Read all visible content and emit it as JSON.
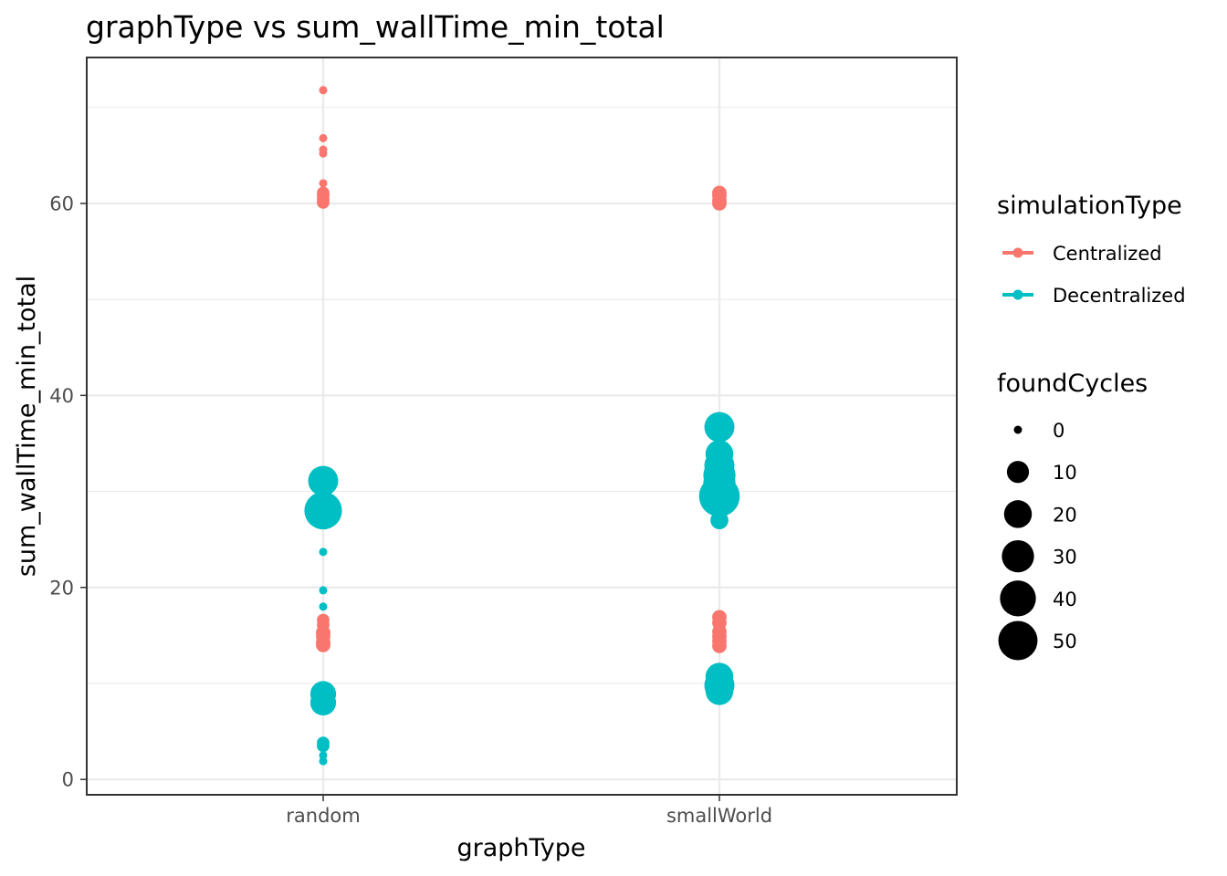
{
  "chart_data": {
    "type": "scatter",
    "title": "graphType  vs  sum_wallTime_min_total",
    "xlabel": "graphType",
    "ylabel": "sum_wallTime_min_total",
    "categories": [
      "random",
      "smallWorld"
    ],
    "ylim": [
      -1.6,
      75.2
    ],
    "yticks": [
      0,
      20,
      40,
      60
    ],
    "grid": true,
    "legend_position": "right",
    "series": [
      {
        "name": "Centralized",
        "color": "#F8766D",
        "points": [
          {
            "x": "random",
            "y": 71.8,
            "size": 0
          },
          {
            "x": "random",
            "y": 66.8,
            "size": 0
          },
          {
            "x": "random",
            "y": 65.6,
            "size": 0
          },
          {
            "x": "random",
            "y": 65.2,
            "size": 0
          },
          {
            "x": "random",
            "y": 62.1,
            "size": 0
          },
          {
            "x": "random",
            "y": 61.1,
            "size": 1
          },
          {
            "x": "random",
            "y": 60.8,
            "size": 1
          },
          {
            "x": "random",
            "y": 60.4,
            "size": 1
          },
          {
            "x": "random",
            "y": 60.1,
            "size": 1
          },
          {
            "x": "random",
            "y": 16.6,
            "size": 1
          },
          {
            "x": "random",
            "y": 16.1,
            "size": 1
          },
          {
            "x": "random",
            "y": 15.3,
            "size": 2
          },
          {
            "x": "random",
            "y": 14.9,
            "size": 2
          },
          {
            "x": "random",
            "y": 14.3,
            "size": 2
          },
          {
            "x": "random",
            "y": 14.0,
            "size": 2
          },
          {
            "x": "smallWorld",
            "y": 61.1,
            "size": 2
          },
          {
            "x": "smallWorld",
            "y": 60.8,
            "size": 2
          },
          {
            "x": "smallWorld",
            "y": 60.3,
            "size": 2
          },
          {
            "x": "smallWorld",
            "y": 60.0,
            "size": 2
          },
          {
            "x": "smallWorld",
            "y": 16.9,
            "size": 2
          },
          {
            "x": "smallWorld",
            "y": 16.3,
            "size": 2
          },
          {
            "x": "smallWorld",
            "y": 15.4,
            "size": 2
          },
          {
            "x": "smallWorld",
            "y": 14.9,
            "size": 2
          },
          {
            "x": "smallWorld",
            "y": 14.4,
            "size": 2
          },
          {
            "x": "smallWorld",
            "y": 13.9,
            "size": 2
          }
        ]
      },
      {
        "name": "Decentralized",
        "color": "#00BFC4",
        "points": [
          {
            "x": "random",
            "y": 31.1,
            "size": 25
          },
          {
            "x": "random",
            "y": 28.0,
            "size": 45
          },
          {
            "x": "random",
            "y": 23.7,
            "size": 0
          },
          {
            "x": "random",
            "y": 19.7,
            "size": 0
          },
          {
            "x": "random",
            "y": 18.0,
            "size": 0
          },
          {
            "x": "random",
            "y": 8.9,
            "size": 16
          },
          {
            "x": "random",
            "y": 8.0,
            "size": 16
          },
          {
            "x": "random",
            "y": 3.8,
            "size": 1
          },
          {
            "x": "random",
            "y": 3.5,
            "size": 1
          },
          {
            "x": "random",
            "y": 2.5,
            "size": 0
          },
          {
            "x": "random",
            "y": 1.9,
            "size": 0
          },
          {
            "x": "smallWorld",
            "y": 36.7,
            "size": 25
          },
          {
            "x": "smallWorld",
            "y": 33.9,
            "size": 20
          },
          {
            "x": "smallWorld",
            "y": 32.7,
            "size": 25
          },
          {
            "x": "smallWorld",
            "y": 31.7,
            "size": 30
          },
          {
            "x": "smallWorld",
            "y": 30.9,
            "size": 30
          },
          {
            "x": "smallWorld",
            "y": 29.5,
            "size": 55
          },
          {
            "x": "smallWorld",
            "y": 27.0,
            "size": 5
          },
          {
            "x": "smallWorld",
            "y": 10.7,
            "size": 20
          },
          {
            "x": "smallWorld",
            "y": 9.8,
            "size": 25
          },
          {
            "x": "smallWorld",
            "y": 9.2,
            "size": 20
          }
        ]
      }
    ],
    "legends": {
      "color": {
        "title": "simulationType",
        "entries": [
          {
            "label": "Centralized",
            "color": "#F8766D"
          },
          {
            "label": "Decentralized",
            "color": "#00BFC4"
          }
        ]
      },
      "size": {
        "title": "foundCycles",
        "entries": [
          {
            "label": "0",
            "value": 0
          },
          {
            "label": "10",
            "value": 10
          },
          {
            "label": "20",
            "value": 20
          },
          {
            "label": "30",
            "value": 30
          },
          {
            "label": "40",
            "value": 40
          },
          {
            "label": "50",
            "value": 50
          }
        ]
      }
    }
  }
}
